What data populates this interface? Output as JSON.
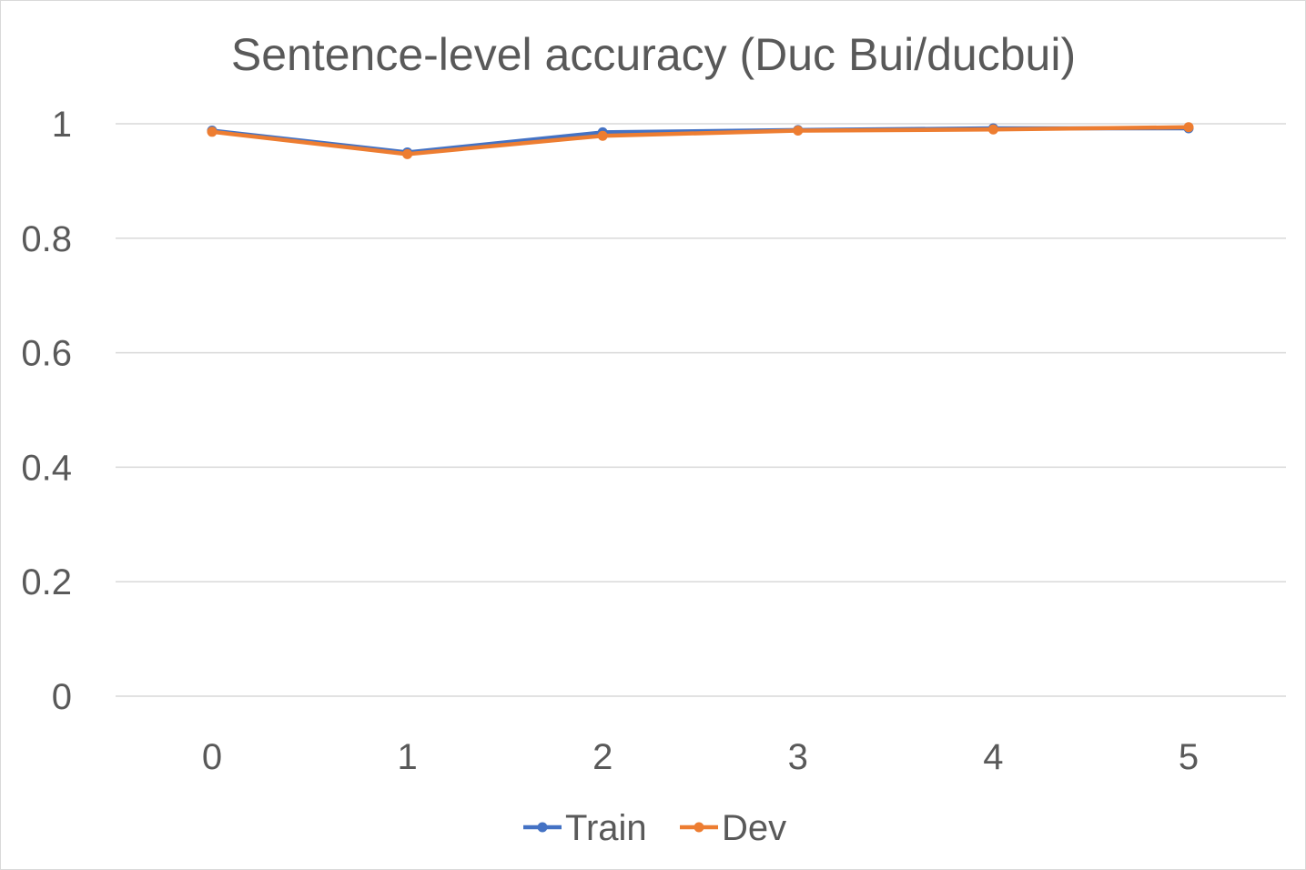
{
  "chart_data": {
    "type": "line",
    "title": "Sentence-level accuracy (Duc Bui/ducbui)",
    "xlabel": "",
    "ylabel": "",
    "x": [
      "0",
      "1",
      "2",
      "3",
      "4",
      "5"
    ],
    "ylim": [
      0,
      1
    ],
    "yticks": [
      "0",
      "0.2",
      "0.4",
      "0.6",
      "0.8",
      "1"
    ],
    "grid": true,
    "legend_position": "bottom",
    "series": [
      {
        "name": "Train",
        "color": "#4472c4",
        "values": [
          0.988,
          0.95,
          0.985,
          0.989,
          0.992,
          0.992
        ]
      },
      {
        "name": "Dev",
        "color": "#ed7d31",
        "values": [
          0.986,
          0.947,
          0.979,
          0.988,
          0.99,
          0.994
        ]
      }
    ]
  }
}
